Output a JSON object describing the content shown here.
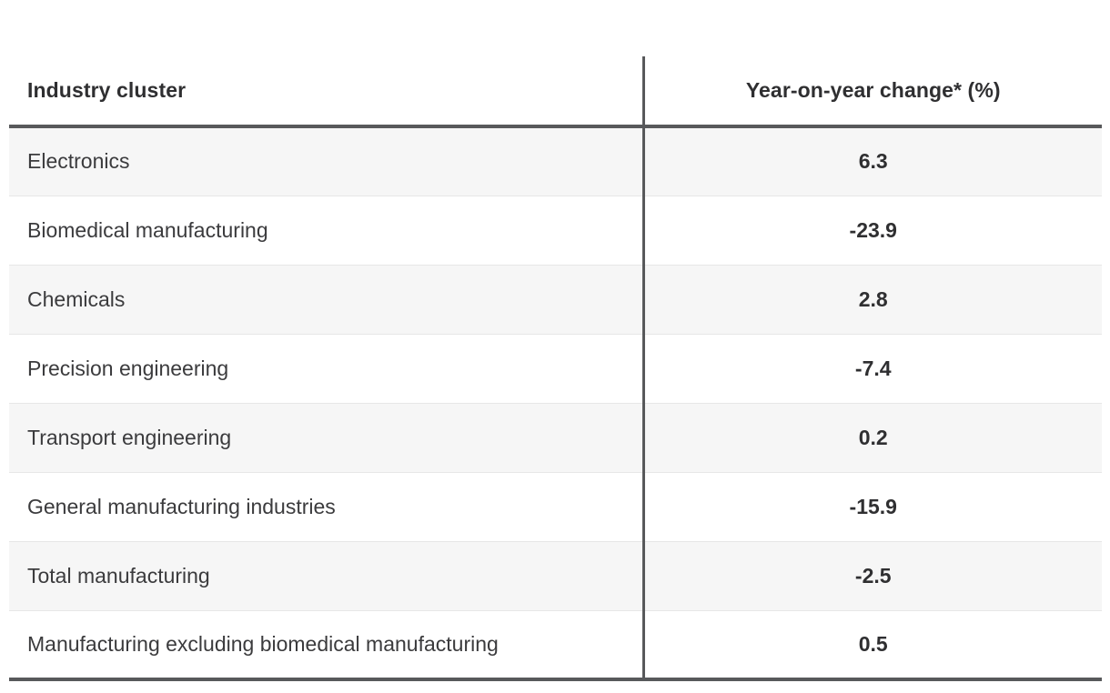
{
  "table": {
    "columns": [
      {
        "label": "Industry cluster"
      },
      {
        "label": "Year-on-year change* (%)"
      }
    ],
    "rows": [
      {
        "cluster": "Electronics",
        "change": "6.3"
      },
      {
        "cluster": "Biomedical manufacturing",
        "change": "-23.9"
      },
      {
        "cluster": "Chemicals",
        "change": "2.8"
      },
      {
        "cluster": "Precision engineering",
        "change": "-7.4"
      },
      {
        "cluster": "Transport engineering",
        "change": "0.2"
      },
      {
        "cluster": "General manufacturing industries",
        "change": "-15.9"
      },
      {
        "cluster": "Total manufacturing",
        "change": "-2.5"
      },
      {
        "cluster": "Manufacturing excluding biomedical manufacturing",
        "change": "0.5"
      }
    ]
  },
  "colors": {
    "border_dark": "#58595b",
    "row_stripe": "#f6f6f6",
    "row_separator": "#e7e7e7",
    "label_text": "#3b3b3d",
    "bold_text": "#2f2f31",
    "background": "#ffffff"
  },
  "chart_data": {
    "type": "table",
    "title": "",
    "columns": [
      "Industry cluster",
      "Year-on-year change* (%)"
    ],
    "categories": [
      "Electronics",
      "Biomedical manufacturing",
      "Chemicals",
      "Precision engineering",
      "Transport engineering",
      "General manufacturing industries",
      "Total manufacturing",
      "Manufacturing excluding biomedical manufacturing"
    ],
    "values": [
      6.3,
      -23.9,
      2.8,
      -7.4,
      0.2,
      -15.9,
      -2.5,
      0.5
    ],
    "layout_hints": {
      "zebra_striping": true,
      "value_column_alignment": "center",
      "thick_rule_below_header": true,
      "thick_rule_below_table": true,
      "vertical_divider_between_columns": true
    }
  }
}
